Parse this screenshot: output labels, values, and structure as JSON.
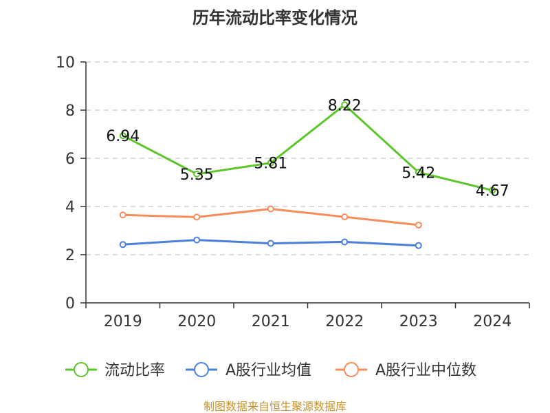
{
  "chart_data": {
    "type": "line",
    "title": "历年流动比率变化情况",
    "categories": [
      "2019",
      "2020",
      "2021",
      "2022",
      "2023",
      "2024"
    ],
    "ylim": [
      0,
      10
    ],
    "yticks": [
      0,
      2,
      4,
      6,
      8,
      10
    ],
    "grid": true,
    "legend_position": "bottom",
    "series": [
      {
        "name": "流动比率",
        "color": "#5cc529",
        "values": [
          6.94,
          5.35,
          5.81,
          8.22,
          5.42,
          4.67
        ],
        "labels": [
          "6.94",
          "5.35",
          "5.81",
          "8.22",
          "5.42",
          "4.67"
        ]
      },
      {
        "name": "A股行业均值",
        "color": "#4a7fdc",
        "values": [
          2.42,
          2.61,
          2.47,
          2.53,
          2.38,
          null
        ]
      },
      {
        "name": "A股行业中位数",
        "color": "#f78c5b",
        "values": [
          3.65,
          3.56,
          3.9,
          3.57,
          3.23,
          null
        ]
      }
    ],
    "source": "制图数据来自恒生聚源数据库"
  }
}
